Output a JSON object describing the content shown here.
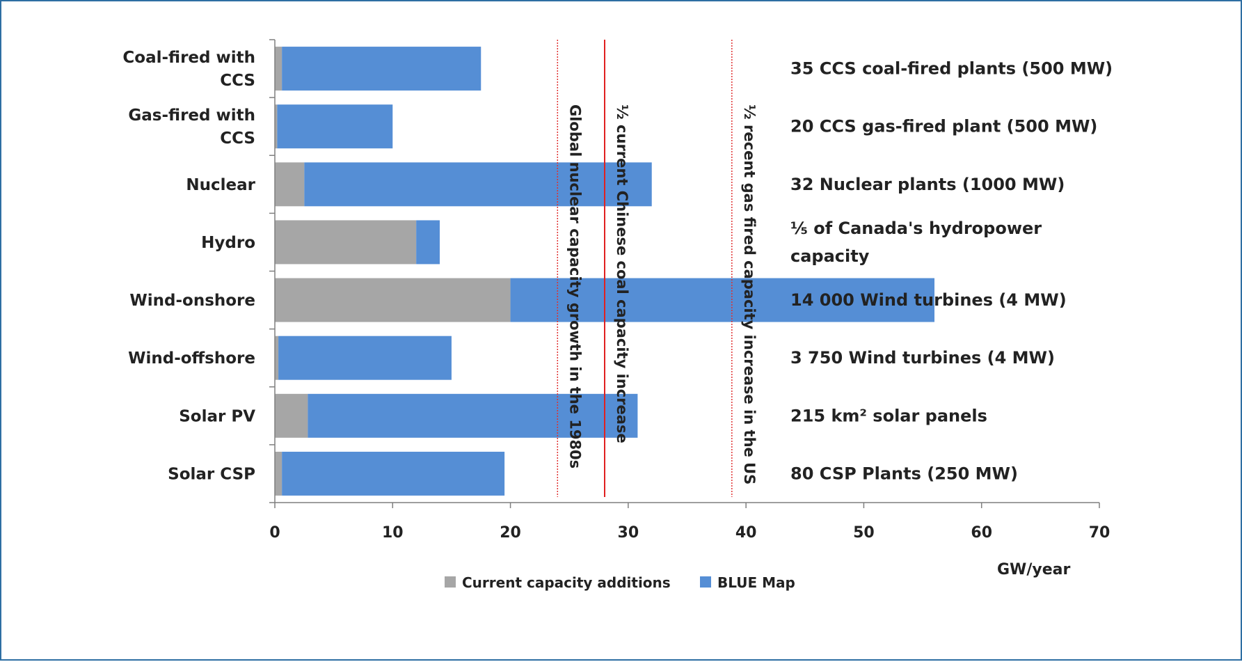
{
  "chart_data": {
    "type": "bar",
    "orientation": "horizontal",
    "stacked": true,
    "categories": [
      [
        "Coal-fired with",
        "CCS"
      ],
      [
        "Gas-fired with",
        "CCS"
      ],
      [
        "Nuclear"
      ],
      [
        "Hydro"
      ],
      [
        "Wind-onshore"
      ],
      [
        "Wind-offshore"
      ],
      [
        "Solar PV"
      ],
      [
        "Solar CSP"
      ]
    ],
    "series": [
      {
        "name": "Current capacity additions",
        "color": "#a6a6a6",
        "values": [
          0.6,
          0.2,
          2.5,
          12,
          20,
          0.3,
          2.8,
          0.6
        ]
      },
      {
        "name": "BLUE Map",
        "color": "#558ed5",
        "values": [
          16.9,
          9.8,
          29.5,
          2,
          36,
          14.7,
          28,
          18.9
        ]
      }
    ],
    "xlabel": "GW/year",
    "xlim": [
      0,
      70
    ],
    "xticks": [
      0,
      10,
      20,
      30,
      40,
      50,
      60,
      70
    ],
    "reference_lines": [
      {
        "x": 24,
        "style": "dotted",
        "color": "#e03030",
        "label": "Global nuclear capacity growth  in the 1980s"
      },
      {
        "x": 28,
        "style": "solid",
        "color": "#e02020",
        "label": "½ current Chinese coal capacity increase"
      },
      {
        "x": 38.8,
        "style": "dotted",
        "color": "#e03030",
        "label": "½ recent gas fired capacity increase in the US"
      }
    ],
    "annotations": [
      [
        "35 CCS coal-fired plants (500 MW)"
      ],
      [
        "20 CCS gas-fired plant (500 MW)"
      ],
      [
        "32 Nuclear plants (1000 MW)"
      ],
      [
        "⅕ of Canada's hydropower",
        "capacity"
      ],
      [
        "14 000 Wind turbines (4 MW)"
      ],
      [
        "3 750 Wind turbines (4 MW)"
      ],
      [
        "215 km² solar panels"
      ],
      [
        "80 CSP Plants (250 MW)"
      ]
    ],
    "legend": {
      "position": "bottom",
      "entries": [
        "Current capacity additions",
        "BLUE Map"
      ]
    }
  }
}
